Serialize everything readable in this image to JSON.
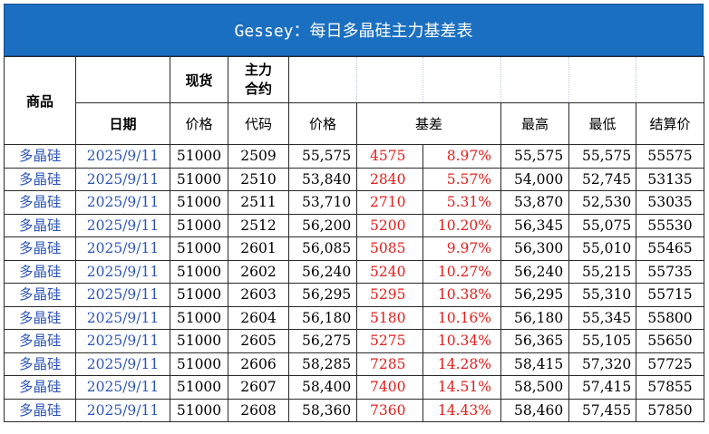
{
  "title": "Gessey：每日多晶硅主力基差表",
  "header_top": {
    "product": "商品",
    "spot": "现货",
    "contract": "主力\n合约"
  },
  "header_sub": {
    "date": "日期",
    "spot_price": "价格",
    "code": "代码",
    "price": "价格",
    "basis": "基差",
    "high": "最高",
    "low": "最低",
    "settle": "结算价"
  },
  "rows": [
    {
      "product": "多晶硅",
      "date": "2025/9/11",
      "spot": "51000",
      "code": "2509",
      "price": "55,575",
      "basis": "4575",
      "basis_pct": "8.97%",
      "high": "55,575",
      "low": "55,575",
      "settle": "55575"
    },
    {
      "product": "多晶硅",
      "date": "2025/9/11",
      "spot": "51000",
      "code": "2510",
      "price": "53,840",
      "basis": "2840",
      "basis_pct": "5.57%",
      "high": "54,000",
      "low": "52,745",
      "settle": "53135"
    },
    {
      "product": "多晶硅",
      "date": "2025/9/11",
      "spot": "51000",
      "code": "2511",
      "price": "53,710",
      "basis": "2710",
      "basis_pct": "5.31%",
      "high": "53,870",
      "low": "52,530",
      "settle": "53035"
    },
    {
      "product": "多晶硅",
      "date": "2025/9/11",
      "spot": "51000",
      "code": "2512",
      "price": "56,200",
      "basis": "5200",
      "basis_pct": "10.20%",
      "high": "56,345",
      "low": "55,075",
      "settle": "55530"
    },
    {
      "product": "多晶硅",
      "date": "2025/9/11",
      "spot": "51000",
      "code": "2601",
      "price": "56,085",
      "basis": "5085",
      "basis_pct": "9.97%",
      "high": "56,300",
      "low": "55,010",
      "settle": "55465"
    },
    {
      "product": "多晶硅",
      "date": "2025/9/11",
      "spot": "51000",
      "code": "2602",
      "price": "56,240",
      "basis": "5240",
      "basis_pct": "10.27%",
      "high": "56,240",
      "low": "55,215",
      "settle": "55735"
    },
    {
      "product": "多晶硅",
      "date": "2025/9/11",
      "spot": "51000",
      "code": "2603",
      "price": "56,295",
      "basis": "5295",
      "basis_pct": "10.38%",
      "high": "56,295",
      "low": "55,310",
      "settle": "55715"
    },
    {
      "product": "多晶硅",
      "date": "2025/9/11",
      "spot": "51000",
      "code": "2604",
      "price": "56,180",
      "basis": "5180",
      "basis_pct": "10.16%",
      "high": "56,180",
      "low": "55,345",
      "settle": "55800"
    },
    {
      "product": "多晶硅",
      "date": "2025/9/11",
      "spot": "51000",
      "code": "2605",
      "price": "56,275",
      "basis": "5275",
      "basis_pct": "10.34%",
      "high": "56,365",
      "low": "55,105",
      "settle": "55650"
    },
    {
      "product": "多晶硅",
      "date": "2025/9/11",
      "spot": "51000",
      "code": "2606",
      "price": "58,285",
      "basis": "7285",
      "basis_pct": "14.28%",
      "high": "58,415",
      "low": "57,320",
      "settle": "57725"
    },
    {
      "product": "多晶硅",
      "date": "2025/9/11",
      "spot": "51000",
      "code": "2607",
      "price": "58,400",
      "basis": "7400",
      "basis_pct": "14.51%",
      "high": "58,500",
      "low": "57,415",
      "settle": "57855"
    },
    {
      "product": "多晶硅",
      "date": "2025/9/11",
      "spot": "51000",
      "code": "2608",
      "price": "58,360",
      "basis": "7360",
      "basis_pct": "14.43%",
      "high": "58,460",
      "low": "57,455",
      "settle": "57850"
    }
  ],
  "colors": {
    "title_bg": "#1b6fc1",
    "product_text": "#2e56b8",
    "basis_text": "#e0201c"
  }
}
